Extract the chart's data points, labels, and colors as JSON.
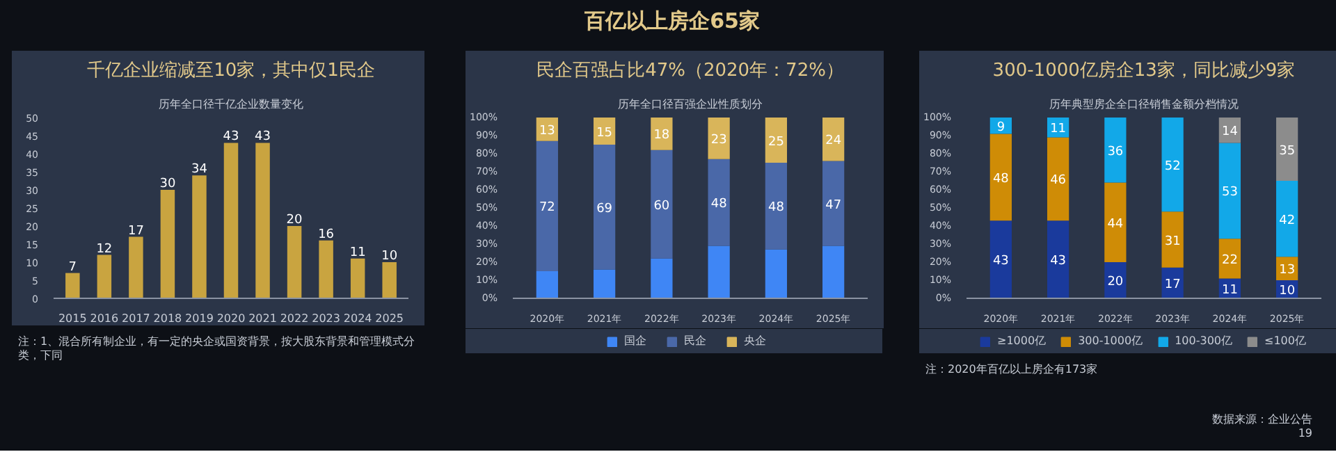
{
  "chart_data": [
    {
      "type": "bar",
      "title": "千亿企业缩减至10家，其中仅1民企",
      "subtitle": "历年全口径千亿企业数量变化",
      "categories": [
        "2015",
        "2016",
        "2017",
        "2018",
        "2019",
        "2020",
        "2021",
        "2022",
        "2023",
        "2024",
        "2025"
      ],
      "values": [
        7,
        12,
        17,
        30,
        34,
        43,
        43,
        20,
        16,
        11,
        10
      ],
      "color": "#c9a440",
      "ylim": [
        0,
        50
      ],
      "yticks": [
        0,
        5,
        10,
        15,
        20,
        25,
        30,
        35,
        40,
        45,
        50
      ],
      "data_labels": true,
      "annotations": [
        "注：1、混合所有制企业，有一定的央企或国资背景，按大股东背景和管理模式分类，下同"
      ]
    },
    {
      "type": "bar",
      "stacked": true,
      "title": "民企百强占比47%（2020年：72%）",
      "subtitle": "历年全口径百强企业性质划分",
      "categories": [
        "2020年",
        "2021年",
        "2022年",
        "2023年",
        "2024年",
        "2025年"
      ],
      "series": [
        {
          "name": "国企",
          "color": "#3f86f5",
          "values": [
            15,
            16,
            22,
            29,
            27,
            29
          ]
        },
        {
          "name": "民企",
          "color": "#4a68a8",
          "values": [
            72,
            69,
            60,
            48,
            48,
            47
          ],
          "value_labels": [
            "72",
            "69",
            "60",
            "48",
            "48",
            "47"
          ]
        },
        {
          "name": "央企",
          "color": "#d9b55a",
          "values": [
            13,
            15,
            18,
            23,
            25,
            24
          ],
          "value_labels": [
            "13",
            "15",
            "18",
            "23",
            "25",
            "24"
          ]
        }
      ],
      "ylim": [
        0,
        100
      ],
      "yticks": [
        {
          "value": 0,
          "label": "0%"
        },
        {
          "value": 10,
          "label": "10%"
        },
        {
          "value": 20,
          "label": "20%"
        },
        {
          "value": 30,
          "label": "30%"
        },
        {
          "value": 40,
          "label": "40%"
        },
        {
          "value": 50,
          "label": "50%"
        },
        {
          "value": 60,
          "label": "60%"
        },
        {
          "value": 70,
          "label": "70%"
        },
        {
          "value": 80,
          "label": "80%"
        },
        {
          "value": 90,
          "label": "90%"
        },
        {
          "value": 100,
          "label": "100%"
        }
      ],
      "legend": "bottom"
    },
    {
      "type": "bar",
      "stacked": true,
      "title": "300-1000亿房企13家，同比减少9家",
      "subtitle": "历年典型房企全口径销售金额分档情况",
      "categories": [
        "2020年",
        "2021年",
        "2022年",
        "2023年",
        "2024年",
        "2025年"
      ],
      "series": [
        {
          "name": "≥1000亿",
          "color": "#1a3a9c",
          "values": [
            43,
            43,
            20,
            17,
            11,
            10
          ],
          "value_labels": [
            "43",
            "43",
            "20",
            "17",
            "11",
            "10"
          ]
        },
        {
          "name": "300-1000亿",
          "color": "#cf8c06",
          "values": [
            48,
            46,
            44,
            31,
            22,
            13
          ],
          "value_labels": [
            "48",
            "46",
            "44",
            "31",
            "22",
            "13"
          ]
        },
        {
          "name": "100-300亿",
          "color": "#12a8e8",
          "values": [
            9,
            11,
            36,
            52,
            53,
            42
          ],
          "value_labels": [
            "9",
            "11",
            "36",
            "52",
            "53",
            "42"
          ]
        },
        {
          "name": "≤100亿",
          "color": "#8c8c8c",
          "values": [
            null,
            null,
            null,
            null,
            14,
            35
          ],
          "value_labels": [
            null,
            null,
            null,
            null,
            "14",
            "35"
          ]
        }
      ],
      "ylim": [
        0,
        100
      ],
      "yticks": [
        {
          "value": 0,
          "label": "0%"
        },
        {
          "value": 10,
          "label": "10%"
        },
        {
          "value": 20,
          "label": "20%"
        },
        {
          "value": 30,
          "label": "30%"
        },
        {
          "value": 40,
          "label": "40%"
        },
        {
          "value": 50,
          "label": "50%"
        },
        {
          "value": 60,
          "label": "60%"
        },
        {
          "value": 70,
          "label": "70%"
        },
        {
          "value": 80,
          "label": "80%"
        },
        {
          "value": 90,
          "label": "90%"
        },
        {
          "value": 100,
          "label": "100%"
        }
      ],
      "legend": "bottom",
      "annotations": [
        "注：2020年百亿以上房企有173家"
      ]
    },
    {
      "type": "other",
      "title": "百亿以上房企65家",
      "annotations": [
        "数据来源：企业公告",
        "19"
      ]
    }
  ]
}
